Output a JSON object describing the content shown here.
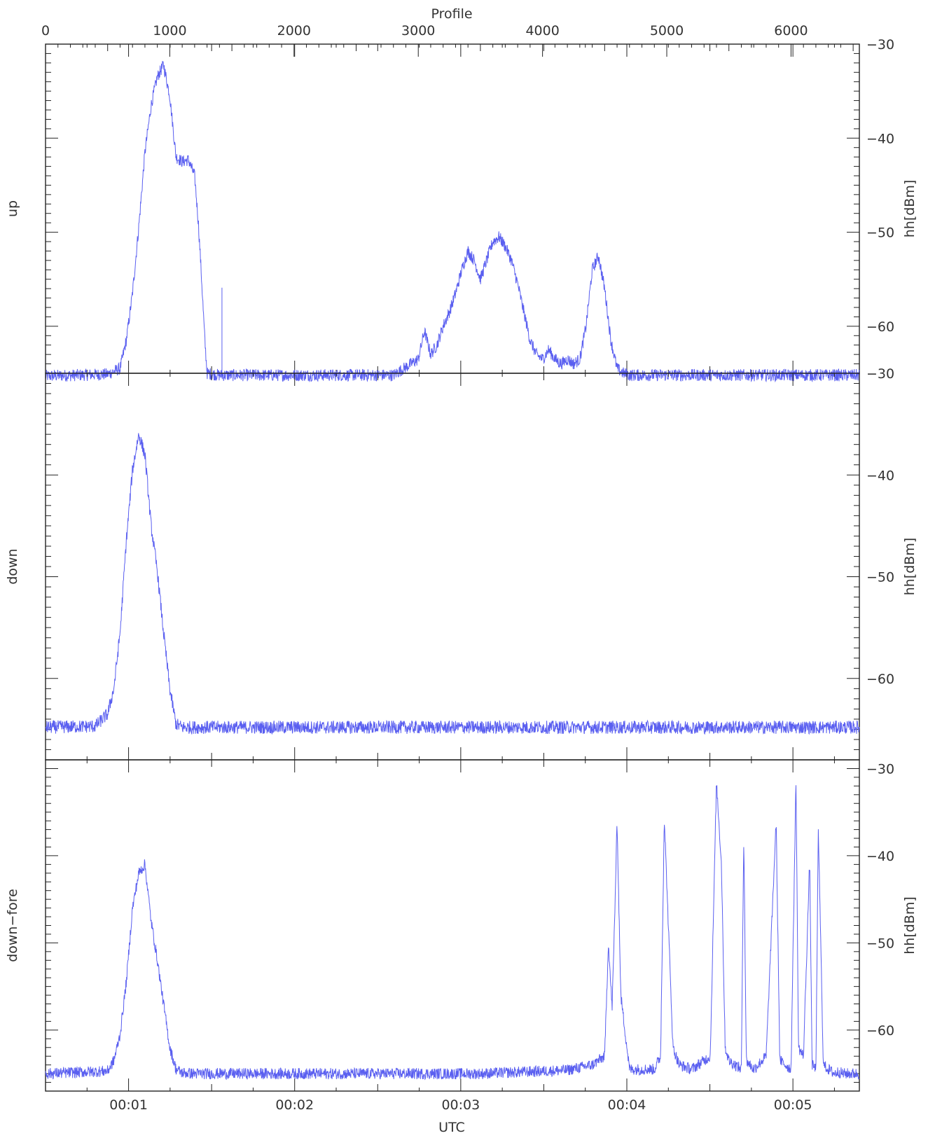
{
  "chart_data": {
    "type": "line",
    "top_axis": {
      "label": "Profile",
      "ticks": [
        0,
        1000,
        2000,
        3000,
        4000,
        5000,
        6000
      ],
      "range": [
        0,
        6550
      ]
    },
    "bottom_axis": {
      "label": "UTC",
      "ticks": [
        "00:01",
        "00:02",
        "00:03",
        "00:04",
        "00:05"
      ],
      "tick_minutes": [
        1,
        2,
        3,
        4,
        5
      ],
      "range_minutes": [
        0.5,
        5.4
      ]
    },
    "line_color": "#5a5ff0",
    "grid": false,
    "panels": [
      {
        "name": "up",
        "ylabel": "hh[dBm]",
        "yticks": [
          "-30",
          "-40",
          "-50",
          "-60"
        ],
        "ylim": [
          -30,
          -65
        ],
        "x": [
          0,
          500,
          600,
          650,
          700,
          750,
          800,
          850,
          900,
          950,
          1000,
          1050,
          1100,
          1150,
          1200,
          1230,
          1250,
          1280,
          1300,
          1400,
          2000,
          2800,
          3000,
          3050,
          3080,
          3100,
          3150,
          3200,
          3250,
          3300,
          3350,
          3400,
          3450,
          3500,
          3550,
          3600,
          3650,
          3700,
          3750,
          3800,
          3850,
          3900,
          3950,
          4000,
          4050,
          4100,
          4150,
          4200,
          4250,
          4300,
          4350,
          4400,
          4450,
          4500,
          4550,
          4600,
          4650,
          4700,
          5000,
          6000,
          6550
        ],
        "values": [
          -65.3,
          -65.1,
          -64.5,
          -61.5,
          -56.5,
          -49.5,
          -41.5,
          -36.5,
          -33.5,
          -32.2,
          -35.5,
          -42.0,
          -42.5,
          -42.3,
          -44.0,
          -49.0,
          -53.5,
          -61.0,
          -65.0,
          -65.2,
          -65.2,
          -65.2,
          -63.5,
          -60.5,
          -62.0,
          -63.0,
          -62.0,
          -60.0,
          -58.5,
          -56.5,
          -54.0,
          -52.0,
          -53.0,
          -55.0,
          -53.0,
          -51.0,
          -50.5,
          -51.5,
          -53.0,
          -55.5,
          -58.5,
          -61.5,
          -63.0,
          -63.5,
          -62.5,
          -63.5,
          -64.0,
          -63.5,
          -64.0,
          -63.5,
          -60.0,
          -54.0,
          -52.5,
          -56.0,
          -61.5,
          -64.5,
          -65.0,
          -65.2,
          -65.2,
          -65.2,
          -65.2
        ],
        "spikes": [
          [
            1420,
            -55.9
          ]
        ]
      },
      {
        "name": "down",
        "ylabel": "hh[dBm]",
        "yticks": [
          "-30",
          "-40",
          "-50",
          "-60"
        ],
        "ylim": [
          -30,
          -68
        ],
        "x": [
          0,
          400,
          500,
          550,
          600,
          650,
          700,
          750,
          800,
          850,
          900,
          950,
          1000,
          1050,
          1100,
          1200,
          2000,
          4000,
          6550
        ],
        "values": [
          -64.8,
          -64.7,
          -63.5,
          -61.0,
          -55.5,
          -46.5,
          -39.5,
          -36.0,
          -38.0,
          -45.0,
          -49.5,
          -55.5,
          -61.0,
          -64.5,
          -64.8,
          -64.8,
          -64.8,
          -64.8,
          -64.8
        ]
      },
      {
        "name": "down−fore",
        "ylabel": "hh[dBm]",
        "yticks": [
          "-30",
          "-40",
          "-50",
          "-60"
        ],
        "ylim": [
          -29,
          -67
        ],
        "x": [
          0,
          500,
          550,
          600,
          650,
          700,
          750,
          800,
          850,
          900,
          950,
          1000,
          1050,
          1100,
          1200,
          2000,
          3500,
          4200,
          4400,
          4500,
          4530,
          4560,
          4580,
          4600,
          4630,
          4700,
          4900,
          4950,
          4980,
          5050,
          5100,
          5200,
          5350,
          5400,
          5440,
          5470,
          5500,
          5550,
          5600,
          5620,
          5640,
          5700,
          5800,
          5880,
          5910,
          6000,
          6040,
          6060,
          6100,
          6150,
          6170,
          6200,
          6220,
          6260,
          6300,
          6350,
          6380,
          6420,
          6550
        ],
        "values": [
          -65.0,
          -64.7,
          -63.5,
          -60.5,
          -54.5,
          -46.0,
          -42.0,
          -41.0,
          -47.5,
          -52.0,
          -57.0,
          -62.0,
          -64.5,
          -64.9,
          -65.0,
          -65.0,
          -65.0,
          -64.6,
          -64.0,
          -63.0,
          -50.0,
          -57.5,
          -47.5,
          -36.0,
          -56.0,
          -64.5,
          -64.5,
          -63.0,
          -35.6,
          -62.0,
          -64.0,
          -64.5,
          -63.0,
          -31.5,
          -41.0,
          -62.0,
          -63.5,
          -64.0,
          -64.5,
          -37.5,
          -63.5,
          -64.5,
          -63.0,
          -36.0,
          -63.5,
          -64.5,
          -31.0,
          -62.0,
          -63.0,
          -40.5,
          -64.0,
          -64.5,
          -37.0,
          -64.0,
          -64.5,
          -65.0,
          -64.8,
          -65.0,
          -65.0
        ]
      }
    ]
  }
}
